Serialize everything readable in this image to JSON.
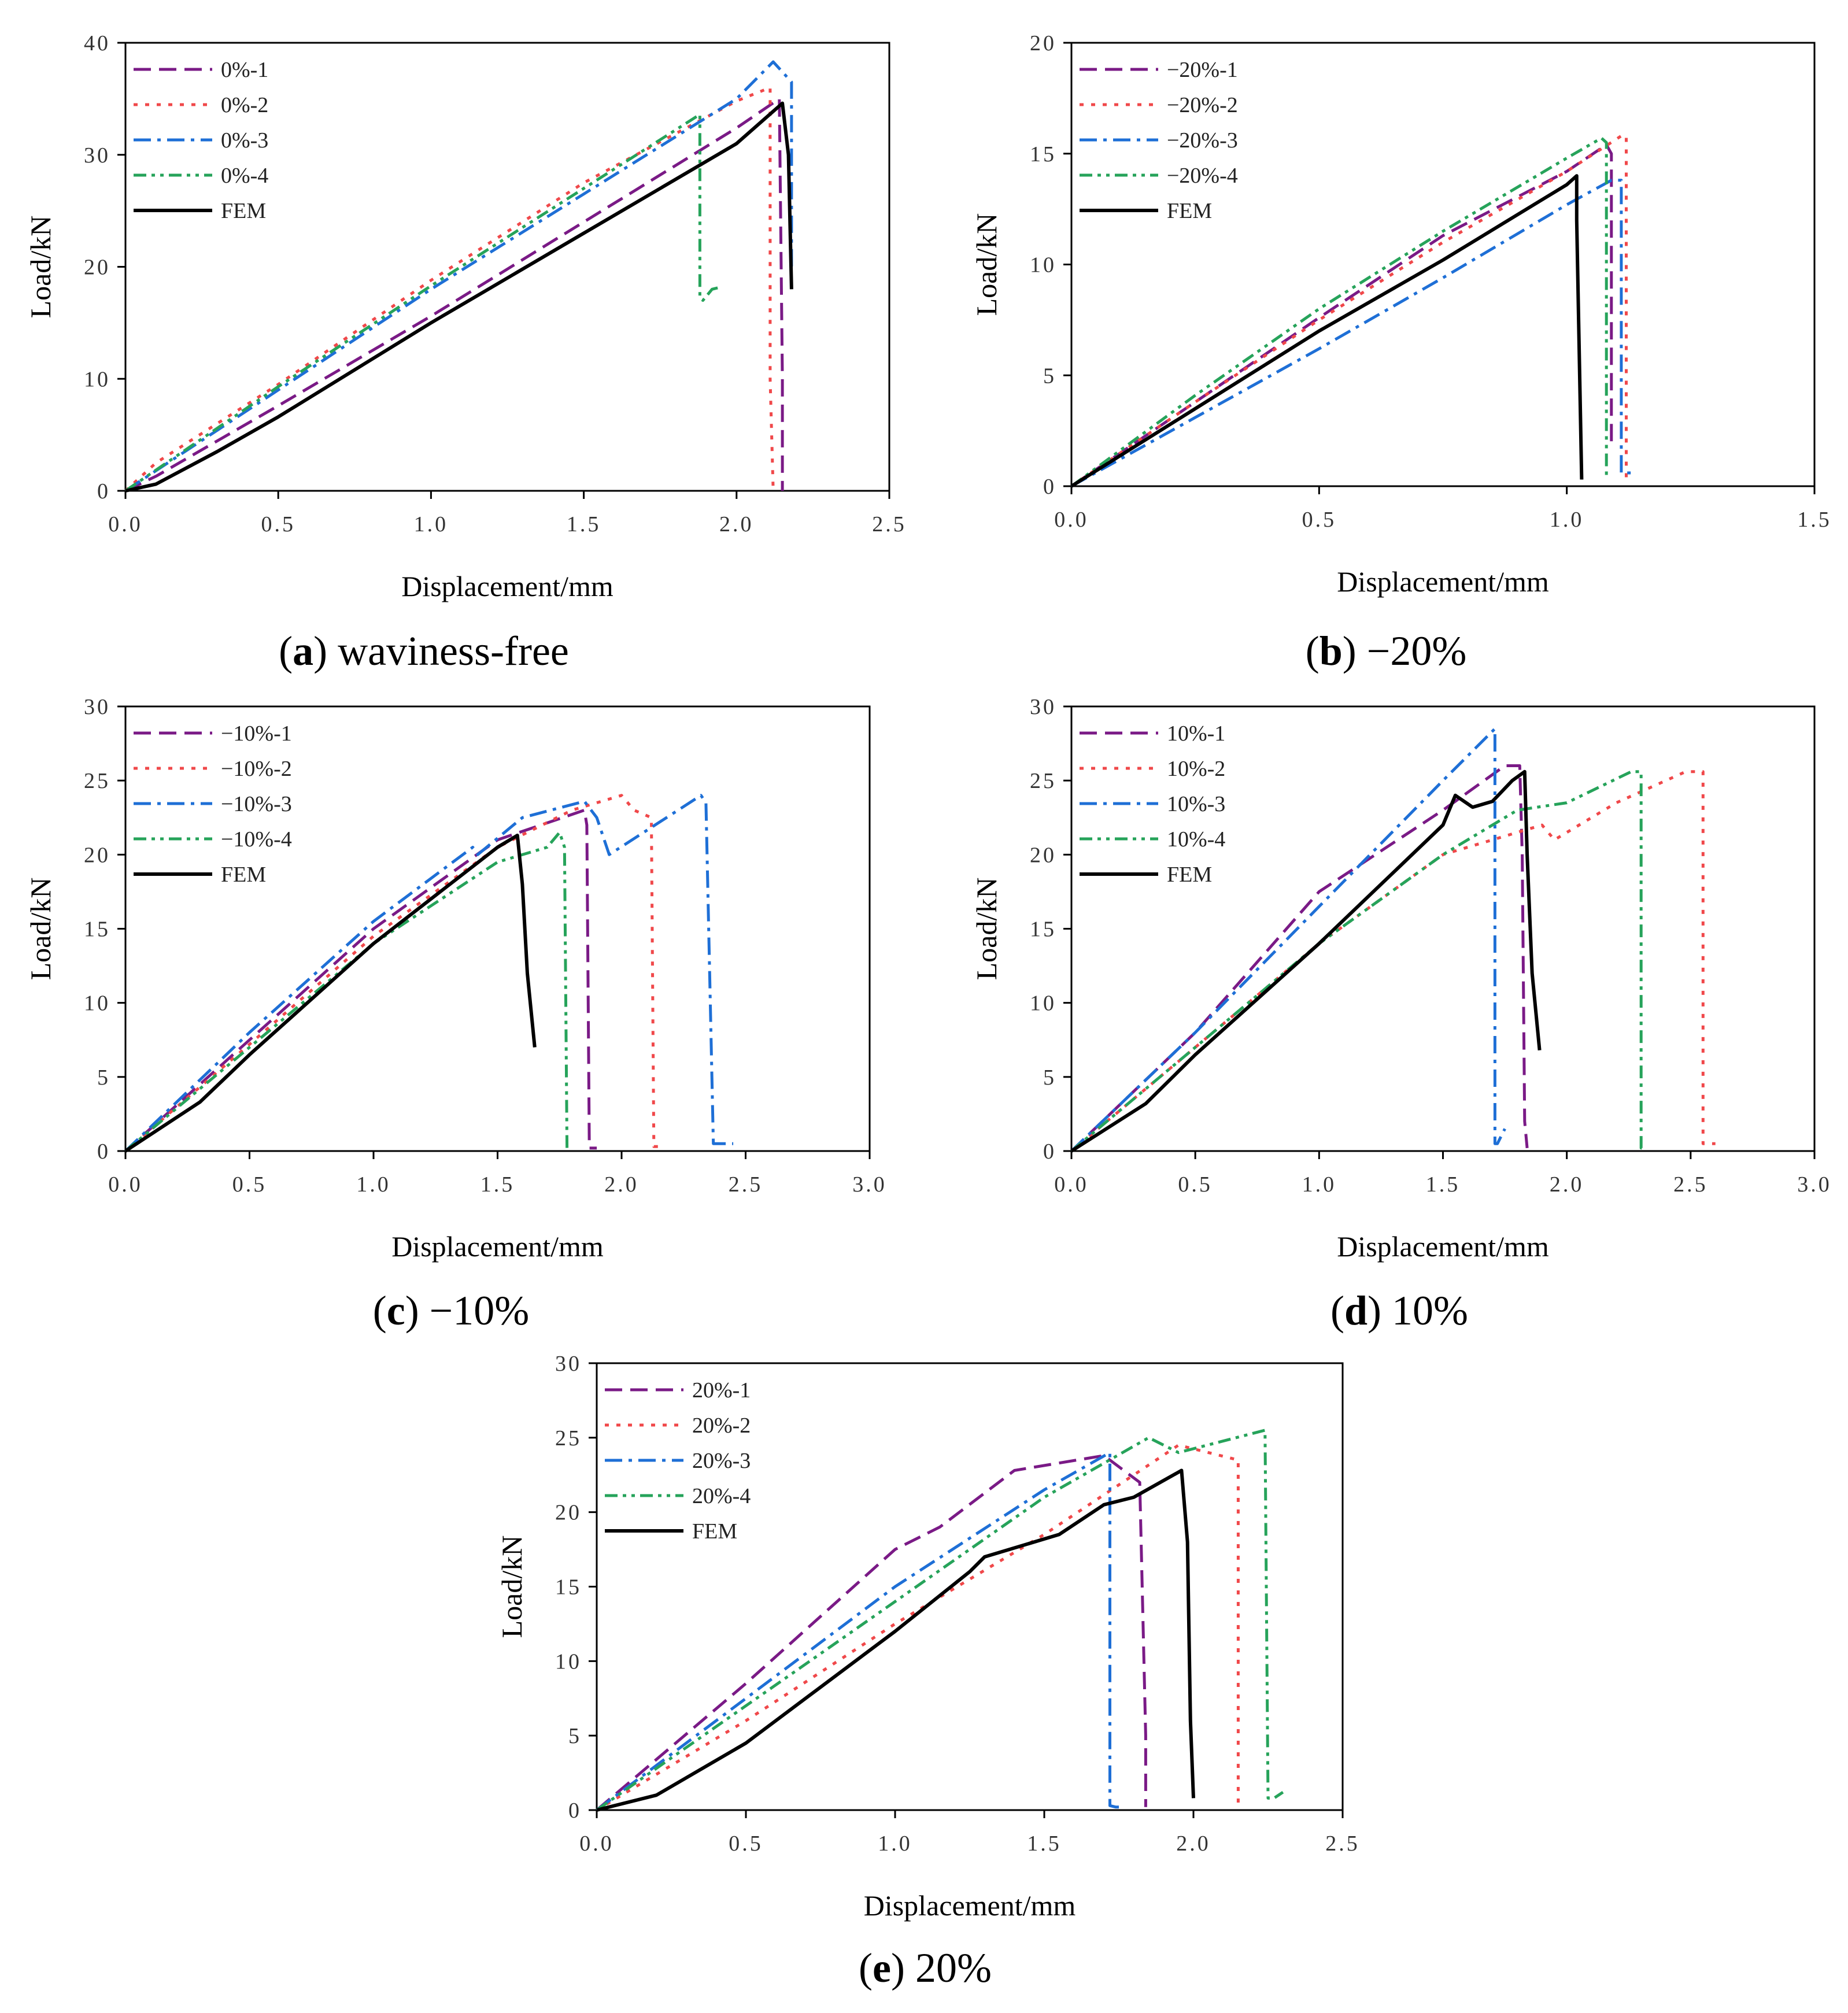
{
  "figure": {
    "panels": [
      {
        "letter": "a",
        "caption": "waviness-free"
      },
      {
        "letter": "b",
        "caption": "−20%"
      },
      {
        "letter": "c",
        "caption": "−10%"
      },
      {
        "letter": "d",
        "caption": "10%"
      },
      {
        "letter": "e",
        "caption": "20%"
      }
    ]
  },
  "styles": {
    "colors": {
      "s1": "#7a1a86",
      "s2": "#f0484a",
      "s3": "#1e6fd6",
      "s4": "#26a35a",
      "fem": "#000000"
    },
    "dashes": {
      "s1": "dash",
      "s2": "dot",
      "s3": "dashdot",
      "s4": "dashdotdot",
      "fem": "solid"
    }
  },
  "chart_data": [
    {
      "type": "line",
      "title": "(a) waviness-free",
      "xlabel": "Displacement/mm",
      "ylabel": "Load/kN",
      "xlim": [
        0,
        2.5
      ],
      "ylim": [
        0,
        40
      ],
      "xticks": [
        "0.0",
        "0.5",
        "1.0",
        "1.5",
        "2.0",
        "2.5"
      ],
      "yticks": [
        "0",
        "10",
        "20",
        "30",
        "40"
      ],
      "legend": "top-left",
      "series": [
        {
          "name": "0%-1",
          "style": "s1",
          "x": [
            0,
            0.1,
            0.5,
            1.0,
            1.5,
            2.0,
            2.14,
            2.15,
            2.15
          ],
          "y": [
            0,
            1.3,
            7.6,
            15.6,
            24.0,
            32.4,
            35.0,
            10,
            0
          ]
        },
        {
          "name": "0%-2",
          "style": "s2",
          "x": [
            0,
            0.1,
            0.5,
            1.0,
            1.5,
            2.0,
            2.11,
            2.11,
            2.12
          ],
          "y": [
            0,
            2.5,
            9.5,
            18.8,
            27.5,
            34.8,
            36.0,
            10,
            0
          ]
        },
        {
          "name": "0%-3",
          "style": "s3",
          "x": [
            0,
            0.5,
            1.0,
            1.5,
            2.0,
            2.12,
            2.18,
            2.18,
            2.17
          ],
          "y": [
            0,
            9.0,
            18.0,
            26.5,
            35.0,
            38.3,
            36.5,
            20,
            20
          ]
        },
        {
          "name": "0%-4",
          "style": "s4",
          "x": [
            0,
            0.5,
            1.0,
            1.5,
            1.88,
            1.88,
            1.89,
            1.92,
            1.95
          ],
          "y": [
            0,
            9.3,
            18.3,
            27.0,
            33.6,
            17.2,
            17.0,
            18.0,
            18.2
          ]
        },
        {
          "name": "FEM",
          "style": "fem",
          "x": [
            0,
            0.1,
            0.3,
            0.5,
            1.0,
            1.5,
            2.0,
            2.15,
            2.17,
            2.18
          ],
          "y": [
            0,
            0.6,
            3.5,
            6.6,
            15.0,
            23.0,
            31.0,
            34.6,
            30,
            18
          ]
        }
      ]
    },
    {
      "type": "line",
      "title": "(b) −20%",
      "xlabel": "Displacement/mm",
      "ylabel": "Load/kN",
      "xlim": [
        0,
        1.5
      ],
      "ylim": [
        0,
        20
      ],
      "xticks": [
        "0.0",
        "0.5",
        "1.0",
        "1.5"
      ],
      "yticks": [
        "0",
        "5",
        "10",
        "15",
        "20"
      ],
      "legend": "top-left",
      "series": [
        {
          "name": "−20%-1",
          "style": "s1",
          "x": [
            0,
            0.25,
            0.5,
            0.75,
            1.0,
            1.08,
            1.09,
            1.09,
            1.1
          ],
          "y": [
            0,
            3.8,
            7.6,
            11.3,
            14.2,
            15.4,
            15,
            2,
            2
          ]
        },
        {
          "name": "−20%-2",
          "style": "s2",
          "x": [
            0,
            0.25,
            0.5,
            0.75,
            1.0,
            1.11,
            1.12,
            1.12,
            1.13
          ],
          "y": [
            0,
            3.8,
            7.5,
            11.0,
            14.2,
            15.8,
            15.8,
            0.3,
            0.3
          ]
        },
        {
          "name": "−20%-3",
          "style": "s3",
          "x": [
            0,
            0.25,
            0.5,
            0.75,
            1.0,
            1.09,
            1.11,
            1.11,
            1.14
          ],
          "y": [
            0,
            3.1,
            6.2,
            9.4,
            12.7,
            13.8,
            13.8,
            0.6,
            0.6
          ]
        },
        {
          "name": "−20%-4",
          "style": "s4",
          "x": [
            0,
            0.25,
            0.5,
            0.75,
            1.0,
            1.07,
            1.08,
            1.08
          ],
          "y": [
            0,
            4.1,
            8.0,
            11.5,
            14.8,
            15.7,
            15.5,
            0.3
          ]
        },
        {
          "name": "FEM",
          "style": "fem",
          "x": [
            0,
            0.25,
            0.5,
            0.75,
            1.0,
            1.02,
            1.02,
            1.03
          ],
          "y": [
            0,
            3.5,
            7.0,
            10.2,
            13.6,
            14.0,
            12,
            0.3
          ]
        }
      ]
    },
    {
      "type": "line",
      "title": "(c) −10%",
      "xlabel": "Displacement/mm",
      "ylabel": "Load/kN",
      "xlim": [
        0,
        3.0
      ],
      "ylim": [
        0,
        30
      ],
      "xticks": [
        "0.0",
        "0.5",
        "1.0",
        "1.5",
        "2.0",
        "2.5",
        "3.0"
      ],
      "yticks": [
        "0",
        "5",
        "10",
        "15",
        "20",
        "25",
        "30"
      ],
      "legend": "top-left",
      "series": [
        {
          "name": "−10%-1",
          "style": "s1",
          "x": [
            0,
            0.5,
            1.0,
            1.5,
            1.85,
            1.86,
            1.87,
            1.9
          ],
          "y": [
            0,
            7.5,
            15.0,
            21.0,
            23.0,
            22,
            0.2,
            0.2
          ]
        },
        {
          "name": "−10%-2",
          "style": "s2",
          "x": [
            0,
            0.5,
            1.0,
            1.5,
            1.8,
            2.0,
            2.05,
            2.12,
            2.13,
            2.15
          ],
          "y": [
            0,
            7.2,
            14.5,
            20.5,
            23.0,
            24.0,
            23.0,
            22.5,
            0.3,
            0.3
          ]
        },
        {
          "name": "−10%-3",
          "style": "s3",
          "x": [
            0,
            0.5,
            1.0,
            1.4,
            1.42,
            1.6,
            1.85,
            1.9,
            1.95,
            2.32,
            2.34,
            2.37,
            2.4,
            2.45
          ],
          "y": [
            0,
            8.0,
            15.5,
            20.5,
            20.0,
            22.5,
            23.6,
            22.5,
            20.0,
            24.0,
            23.5,
            0.5,
            0.5,
            0.5
          ]
        },
        {
          "name": "−10%-4",
          "style": "s4",
          "x": [
            0,
            0.5,
            1.0,
            1.5,
            1.7,
            1.75,
            1.77,
            1.78,
            1.8
          ],
          "y": [
            0,
            7.0,
            14.0,
            19.5,
            20.5,
            21.5,
            20.5,
            0.2,
            0.2
          ]
        },
        {
          "name": "FEM",
          "style": "fem",
          "x": [
            0,
            0.3,
            0.5,
            1.0,
            1.5,
            1.58,
            1.6,
            1.62,
            1.65
          ],
          "y": [
            0,
            3.3,
            6.5,
            14.0,
            20.5,
            21.3,
            18.0,
            12.0,
            7.0
          ]
        }
      ]
    },
    {
      "type": "line",
      "title": "(d) 10%",
      "xlabel": "Displacement/mm",
      "ylabel": "Load/kN",
      "xlim": [
        0,
        3.0
      ],
      "ylim": [
        0,
        30
      ],
      "xticks": [
        "0.0",
        "0.5",
        "1.0",
        "1.5",
        "2.0",
        "2.5",
        "3.0"
      ],
      "yticks": [
        "0",
        "5",
        "10",
        "15",
        "20",
        "25",
        "30"
      ],
      "legend": "top-left",
      "series": [
        {
          "name": "10%-1",
          "style": "s1",
          "x": [
            0,
            0.5,
            1.0,
            1.5,
            1.75,
            1.81,
            1.82,
            1.83,
            1.84
          ],
          "y": [
            0,
            8.0,
            17.5,
            23.0,
            26.0,
            26.0,
            20.0,
            2.0,
            0.2
          ]
        },
        {
          "name": "10%-2",
          "style": "s2",
          "x": [
            0,
            0.5,
            1.0,
            1.5,
            1.9,
            1.95,
            2.2,
            2.48,
            2.55,
            2.55,
            2.6
          ],
          "y": [
            0,
            7.0,
            14.0,
            20.0,
            22.0,
            21.0,
            23.5,
            25.6,
            25.6,
            0.5,
            0.5
          ]
        },
        {
          "name": "10%-3",
          "style": "s3",
          "x": [
            0,
            0.5,
            1.0,
            1.5,
            1.71,
            1.71,
            1.72,
            1.75
          ],
          "y": [
            0,
            8.0,
            16.5,
            25.0,
            28.5,
            0.5,
            0.5,
            1.5
          ]
        },
        {
          "name": "10%-4",
          "style": "s4",
          "x": [
            0,
            0.5,
            1.0,
            1.5,
            1.8,
            2.0,
            2.26,
            2.3,
            2.3,
            2.32
          ],
          "y": [
            0,
            7.0,
            14.0,
            20.0,
            23.0,
            23.5,
            25.6,
            25.6,
            0.2,
            0.2
          ]
        },
        {
          "name": "FEM",
          "style": "fem",
          "x": [
            0,
            0.3,
            0.5,
            1.0,
            1.5,
            1.55,
            1.62,
            1.7,
            1.78,
            1.83,
            1.84,
            1.86,
            1.89
          ],
          "y": [
            0,
            3.2,
            6.5,
            14.0,
            22.0,
            24.0,
            23.2,
            23.6,
            25.0,
            25.6,
            20.0,
            12.0,
            6.8
          ]
        }
      ]
    },
    {
      "type": "line",
      "title": "(e) 20%",
      "xlabel": "Displacement/mm",
      "ylabel": "Load/kN",
      "xlim": [
        0,
        2.5
      ],
      "ylim": [
        0,
        30
      ],
      "xticks": [
        "0.0",
        "0.5",
        "1.0",
        "1.5",
        "2.0",
        "2.5"
      ],
      "yticks": [
        "0",
        "5",
        "10",
        "15",
        "20",
        "25",
        "30"
      ],
      "legend": "top-left",
      "series": [
        {
          "name": "20%-1",
          "style": "s1",
          "x": [
            0,
            0.5,
            1.0,
            1.15,
            1.4,
            1.7,
            1.82,
            1.84,
            1.84
          ],
          "y": [
            0,
            8.5,
            17.5,
            19.0,
            22.8,
            23.8,
            22.0,
            5.0,
            0.2
          ]
        },
        {
          "name": "20%-2",
          "style": "s2",
          "x": [
            0,
            0.5,
            1.0,
            1.5,
            1.95,
            2.15,
            2.15,
            2.16
          ],
          "y": [
            0,
            6.0,
            12.5,
            18.5,
            24.5,
            23.5,
            0.5,
            0.3
          ]
        },
        {
          "name": "20%-3",
          "style": "s3",
          "x": [
            0,
            0.5,
            1.0,
            1.5,
            1.72,
            1.72,
            1.74,
            1.75
          ],
          "y": [
            0,
            7.5,
            15.0,
            21.5,
            24.0,
            0.3,
            0.2,
            0.2
          ]
        },
        {
          "name": "20%-4",
          "style": "s4",
          "x": [
            0,
            0.5,
            1.0,
            1.5,
            1.85,
            1.95,
            2.24,
            2.25,
            2.27,
            2.3
          ],
          "y": [
            0,
            7.0,
            14.0,
            21.0,
            25.0,
            24.0,
            25.5,
            0.8,
            0.8,
            1.2
          ]
        },
        {
          "name": "FEM",
          "style": "fem",
          "x": [
            0,
            0.2,
            0.5,
            1.0,
            1.25,
            1.3,
            1.55,
            1.7,
            1.8,
            1.96,
            1.98,
            1.99,
            2.0
          ],
          "y": [
            0,
            1.0,
            4.5,
            12.0,
            16.0,
            17.0,
            18.5,
            20.5,
            21.0,
            22.8,
            18.0,
            6.0,
            0.8
          ]
        }
      ]
    }
  ]
}
